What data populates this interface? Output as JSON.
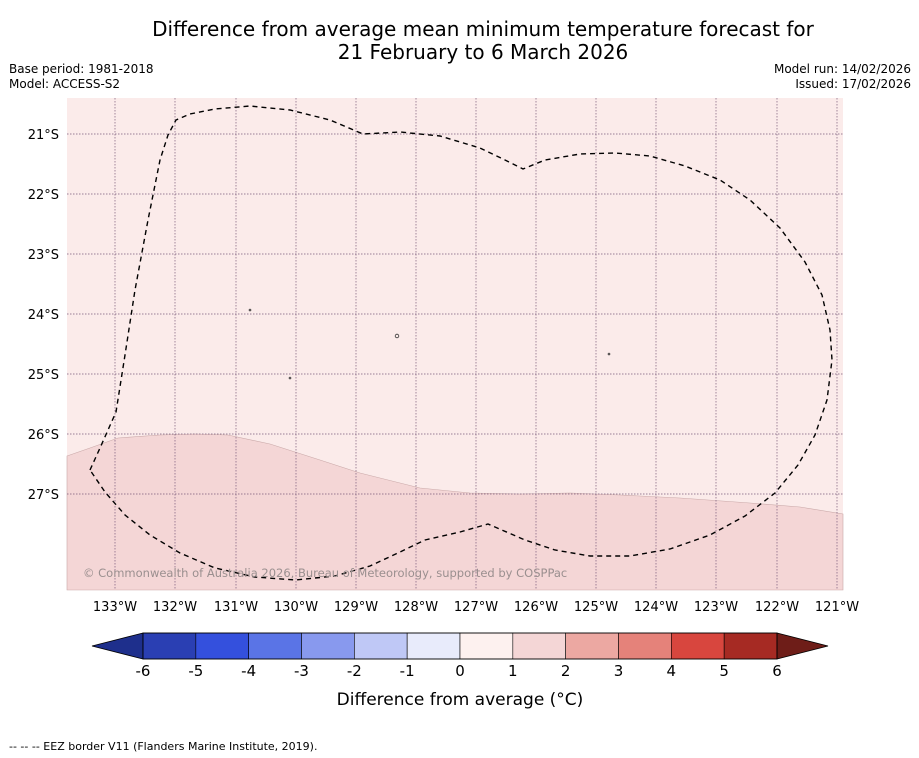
{
  "title": {
    "line1": "Difference from average mean minimum temperature forecast for",
    "line2": "21 February to 6 March 2026"
  },
  "meta_left": {
    "base_period": "Base period: 1981-2018",
    "model": "Model: ACCESS-S2"
  },
  "meta_right": {
    "model_run": "Model run: 14/02/2026",
    "issued": "Issued: 17/02/2026"
  },
  "map": {
    "latitude_labels": [
      "21°S",
      "22°S",
      "23°S",
      "24°S",
      "25°S",
      "26°S",
      "27°S"
    ],
    "longitude_labels": [
      "133°W",
      "132°W",
      "131°W",
      "130°W",
      "129°W",
      "128°W",
      "127°W",
      "126°W",
      "125°W",
      "124°W",
      "123°W",
      "122°W",
      "121°W"
    ],
    "copyright": "© Commonwealth of Australia 2026, Bureau of Meteorology, supported by COSPPac",
    "colors": {
      "anomaly_0_1": "#fbebea",
      "anomaly_1_2": "#f4d6d6",
      "graticule": "#7a5a7a",
      "eez_border": "#000000"
    }
  },
  "colorbar": {
    "tick_labels": [
      "-6",
      "-5",
      "-4",
      "-3",
      "-2",
      "-1",
      "0",
      "1",
      "2",
      "3",
      "4",
      "5",
      "6"
    ],
    "colors": [
      "#1e2f8c",
      "#2a3fb3",
      "#3450dd",
      "#5a74e6",
      "#8899ee",
      "#bfc8f6",
      "#e8ebfb",
      "#fdf1ef",
      "#f4d6d6",
      "#eca8a2",
      "#e5827a",
      "#d8463e",
      "#a62a23",
      "#6e1d18"
    ],
    "label": "Difference from average (°C)"
  },
  "footer": "--  --  -- EEZ border V11 (Flanders Marine Institute, 2019)."
}
